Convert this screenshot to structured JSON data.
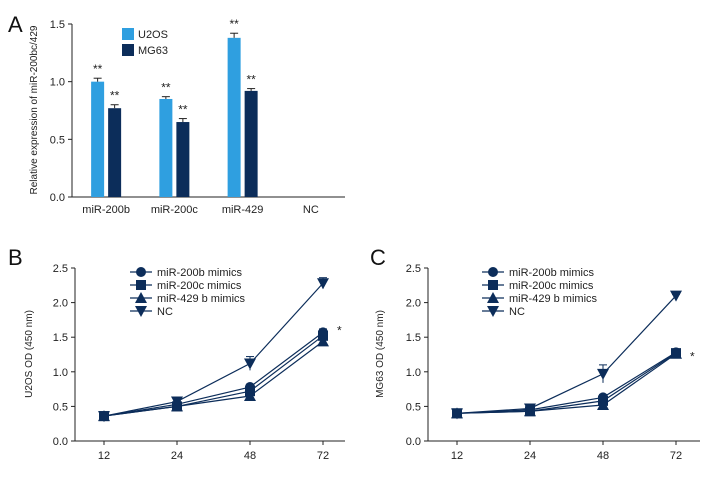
{
  "chart_data": [
    {
      "panel": "A",
      "type": "bar",
      "title": "",
      "xlabel": "",
      "ylabel": "Relative expression of miR-200bc/429",
      "ylim": [
        0,
        1.5
      ],
      "yticks": [
        "0.0",
        "0.5",
        "1.0",
        "1.5"
      ],
      "categories": [
        "miR-200b",
        "miR-200c",
        "miR-429",
        "NC"
      ],
      "series": [
        {
          "name": "U2OS",
          "color": "#2f9fe0",
          "values": [
            1.0,
            0.85,
            1.38,
            null
          ],
          "errors": [
            0.03,
            0.02,
            0.04,
            null
          ],
          "labels": [
            "**",
            "**",
            "**",
            ""
          ]
        },
        {
          "name": "MG63",
          "color": "#0c2d5a",
          "values": [
            0.77,
            0.65,
            0.92,
            null
          ],
          "errors": [
            0.03,
            0.03,
            0.02,
            null
          ],
          "labels": [
            "**",
            "**",
            "**",
            ""
          ]
        }
      ]
    },
    {
      "panel": "B",
      "type": "line",
      "title": "",
      "xlabel": "",
      "ylabel": "U2OS OD (450 nm)",
      "ylim": [
        0,
        2.5
      ],
      "yticks": [
        "0.0",
        "0.5",
        "1.0",
        "1.5",
        "2.0",
        "2.5"
      ],
      "x": [
        "12",
        "24",
        "48",
        "72"
      ],
      "annotation": "*",
      "series": [
        {
          "name": "miR-200b mimics",
          "marker": "circle",
          "values": [
            0.36,
            0.53,
            0.78,
            1.57
          ],
          "errors": [
            0.01,
            0.02,
            0.04,
            0.05
          ]
        },
        {
          "name": "miR-200c mimics",
          "marker": "square",
          "values": [
            0.36,
            0.5,
            0.72,
            1.52
          ],
          "errors": [
            0.01,
            0.02,
            0.04,
            0.04
          ]
        },
        {
          "name": "miR-429 b mimics",
          "marker": "triangle-up",
          "values": [
            0.36,
            0.5,
            0.65,
            1.44
          ],
          "errors": [
            0.01,
            0.02,
            0.05,
            0.04
          ]
        },
        {
          "name": "NC",
          "marker": "triangle-down",
          "values": [
            0.36,
            0.57,
            1.12,
            2.28
          ],
          "errors": [
            0.01,
            0.02,
            0.1,
            0.08
          ]
        }
      ]
    },
    {
      "panel": "C",
      "type": "line",
      "title": "",
      "xlabel": "",
      "ylabel": "MG63 OD (450 nm)",
      "ylim": [
        0,
        2.5
      ],
      "yticks": [
        "0.0",
        "0.5",
        "1.0",
        "1.5",
        "2.0",
        "2.5"
      ],
      "x": [
        "12",
        "24",
        "48",
        "72"
      ],
      "annotation": "*",
      "series": [
        {
          "name": "miR-200b mimics",
          "marker": "circle",
          "values": [
            0.4,
            0.45,
            0.63,
            1.28
          ],
          "errors": [
            0.01,
            0.02,
            0.04,
            0.02
          ]
        },
        {
          "name": "miR-200c mimics",
          "marker": "square",
          "values": [
            0.4,
            0.43,
            0.58,
            1.27
          ],
          "errors": [
            0.01,
            0.02,
            0.04,
            0.02
          ]
        },
        {
          "name": "miR-429 b mimics",
          "marker": "triangle-up",
          "values": [
            0.4,
            0.43,
            0.52,
            1.26
          ],
          "errors": [
            0.01,
            0.02,
            0.04,
            0.02
          ]
        },
        {
          "name": "NC",
          "marker": "triangle-down",
          "values": [
            0.4,
            0.47,
            0.97,
            2.1
          ],
          "errors": [
            0.01,
            0.02,
            0.13,
            0.02
          ]
        }
      ]
    }
  ],
  "line_color": "#0c2d5a"
}
